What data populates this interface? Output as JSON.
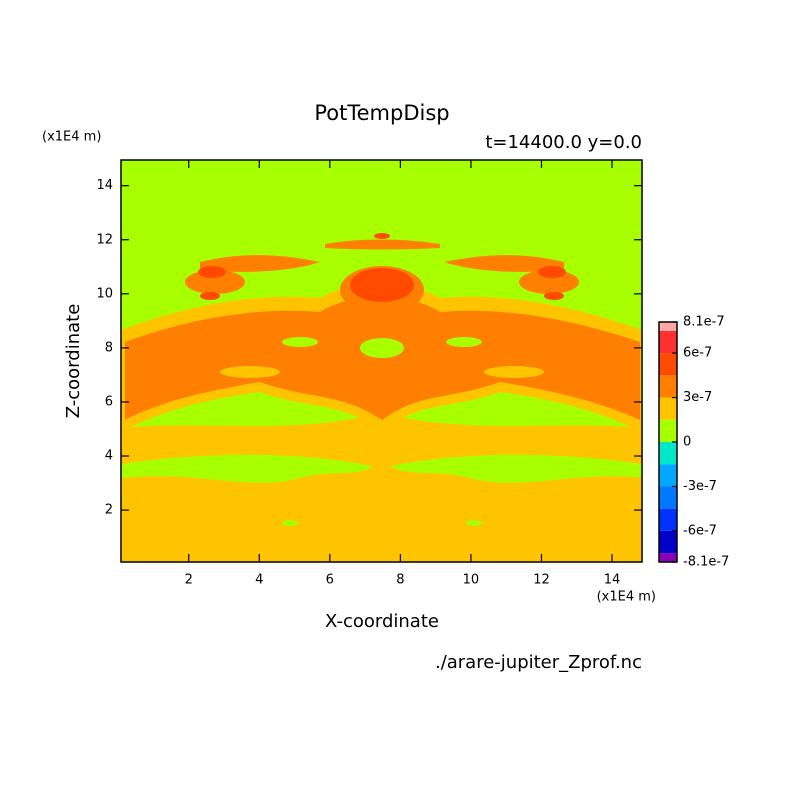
{
  "chart_data": {
    "type": "contour",
    "title": "PotTempDisp",
    "subtitle": "t=14400.0 y=0.0",
    "x_label": "X-coordinate",
    "y_label": "Z-coordinate",
    "x_unit": "(x1E4 m)",
    "y_unit": "(x1E4 m)",
    "source": "./arare-jupiter_Zprof.nc",
    "xlim": [
      0.08,
      14.85
    ],
    "ylim": [
      0.08,
      14.95
    ],
    "xticks": [
      2,
      4,
      6,
      8,
      10,
      12,
      14
    ],
    "yticks": [
      2,
      4,
      6,
      8,
      10,
      12,
      14
    ],
    "colorbar": {
      "levels": [
        -8.1e-07,
        -7.5e-07,
        -6e-07,
        -4.5e-07,
        -3e-07,
        -1.5e-07,
        0,
        1.5e-07,
        3e-07,
        4.5e-07,
        6e-07,
        7.5e-07,
        8.1e-07
      ],
      "colors": [
        "#8c00b4",
        "#0000c8",
        "#0032ff",
        "#0078ff",
        "#00a8ff",
        "#00e6c8",
        "#a8ff00",
        "#ffc400",
        "#ff8000",
        "#ff4a00",
        "#ff3030",
        "#ffa8a8"
      ],
      "ticks": [
        8.1e-07,
        6e-07,
        3e-07,
        0,
        -3e-07,
        -6e-07,
        -8.1e-07
      ]
    }
  }
}
